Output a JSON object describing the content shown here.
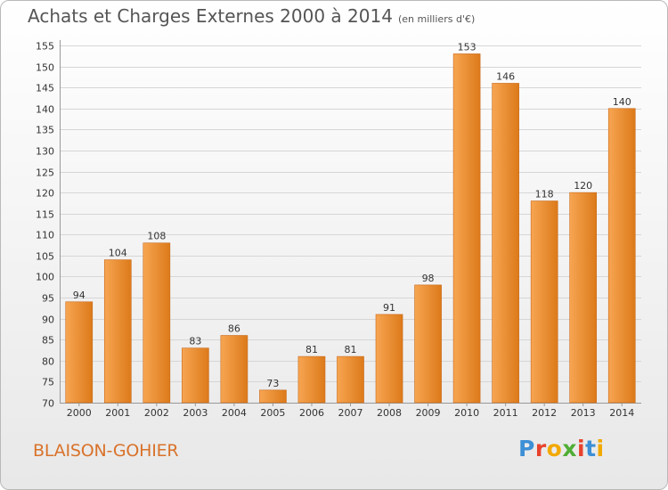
{
  "header": {
    "title": "Achats et Charges Externes 2000 à 2014",
    "subtitle": "(en milliers d'€)"
  },
  "footer": {
    "commune": "BLAISON-GOHIER",
    "logo_letters": [
      "P",
      "r",
      "o",
      "x",
      "i",
      "t",
      "i"
    ],
    "logo_colors": [
      "#3d8fd6",
      "#e8422c",
      "#f2a900",
      "#4fae35",
      "#e8422c",
      "#3d8fd6",
      "#f2a900"
    ]
  },
  "chart_data": {
    "type": "bar",
    "categories": [
      "2000",
      "2001",
      "2002",
      "2003",
      "2004",
      "2005",
      "2006",
      "2007",
      "2008",
      "2009",
      "2010",
      "2011",
      "2012",
      "2013",
      "2014"
    ],
    "values": [
      94,
      104,
      108,
      83,
      86,
      73,
      81,
      81,
      91,
      98,
      153,
      146,
      118,
      120,
      140
    ],
    "ylim": [
      70,
      155
    ],
    "yticks": [
      70,
      75,
      80,
      85,
      90,
      95,
      100,
      105,
      110,
      115,
      120,
      125,
      130,
      135,
      140,
      145,
      150,
      155
    ],
    "grid": true,
    "bar_color": "#f0922e",
    "bar_color_light": "#f7a552",
    "bar_color_dark": "#dc7a1a"
  }
}
